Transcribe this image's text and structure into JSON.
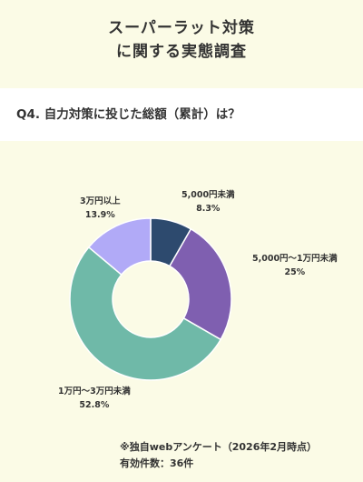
{
  "header": {
    "title_line1": "スーパーラット対策",
    "title_line2": "に関する実態調査"
  },
  "question": "Q4. 自力対策に投じた総額（累計）は？",
  "footer": {
    "source": "※独自webアンケート（2026年2月時点）",
    "count": "有効件数：36件"
  },
  "chart_data": {
    "type": "pie",
    "donut": true,
    "title": "",
    "categories": [
      "5,000円未満",
      "5,000円〜1万円未満",
      "1万円〜3万円未満",
      "3万円以上"
    ],
    "values": [
      8.3,
      25,
      52.8,
      13.9
    ],
    "value_labels": [
      "8.3%",
      "25%",
      "52.8%",
      "13.9%"
    ],
    "colors": [
      "#2d4a6e",
      "#7f5fb0",
      "#6fb9a8",
      "#b1aaf7"
    ],
    "start_angle_deg": 0,
    "direction": "clockwise"
  }
}
